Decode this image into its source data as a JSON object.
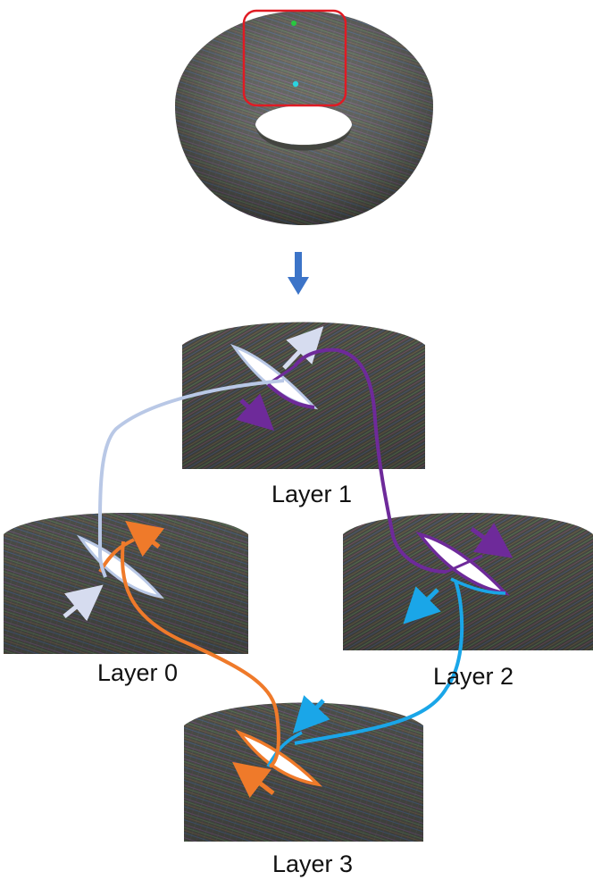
{
  "labels": {
    "layer0": "Layer 0",
    "layer1": "Layer 1",
    "layer2": "Layer 2",
    "layer3": "Layer 3"
  },
  "colors": {
    "surface_dark": "#4a4c48",
    "surface_mid": "#6a6e66",
    "highlight_box": "#e01b24",
    "point_top": "#28c840",
    "point_center": "#2ad4e0",
    "down_arrow": "#3c74c8",
    "path_light": "#b9c8e6",
    "path_purple": "#6e2a9a",
    "path_orange": "#ef7a2a",
    "path_cyan": "#1aa6e8"
  },
  "icons": {
    "flow": "down-arrow-icon"
  }
}
